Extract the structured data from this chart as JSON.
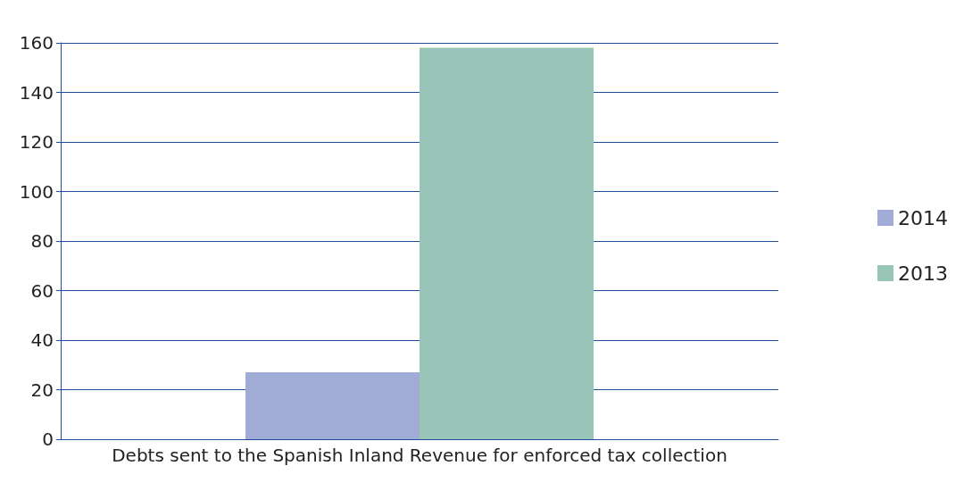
{
  "chart_data": {
    "type": "bar",
    "categories": [
      "Debts sent to the Spanish Inland Revenue for enforced tax collection"
    ],
    "series": [
      {
        "name": "2014",
        "color": "#a0acd6",
        "values": [
          27
        ]
      },
      {
        "name": "2013",
        "color": "#99c4b8",
        "values": [
          158
        ]
      }
    ],
    "ylim": [
      0,
      160
    ],
    "yticks": [
      0,
      20,
      40,
      60,
      80,
      100,
      120,
      140,
      160
    ],
    "grid": "y",
    "legend": "right"
  }
}
